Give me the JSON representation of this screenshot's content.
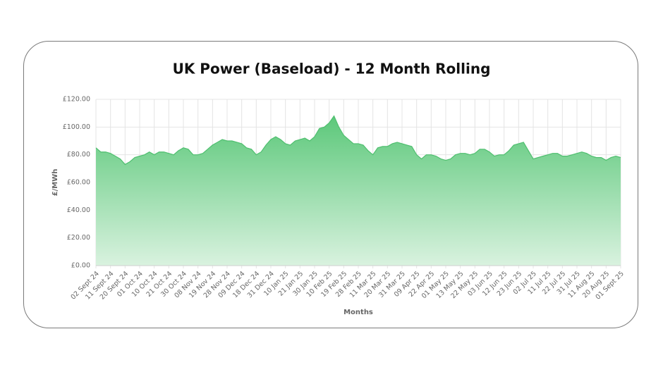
{
  "chart_data": {
    "type": "area",
    "title": "UK Power (Baseload) - 12 Month Rolling",
    "xlabel": "Months",
    "ylabel": "£/MWh",
    "color": "#4fbf6f",
    "grid": true,
    "ylim": [
      0,
      120
    ],
    "yticks": [
      {
        "value": 0,
        "label": "£0.00"
      },
      {
        "value": 20,
        "label": "£20.00"
      },
      {
        "value": 40,
        "label": "£40.00"
      },
      {
        "value": 60,
        "label": "£60.00"
      },
      {
        "value": 80,
        "label": "£80.00"
      },
      {
        "value": 100,
        "label": "£100.00"
      },
      {
        "value": 120,
        "label": "£120.00"
      }
    ],
    "categories": [
      "02 Sept 24",
      null,
      null,
      "11 Sept 24",
      null,
      null,
      "20 Sept 24",
      null,
      null,
      "01 Oct 24",
      null,
      null,
      "10 Oct 24",
      null,
      null,
      "21 Oct 24",
      null,
      null,
      "30 Oct 24",
      null,
      null,
      "08 Nov 24",
      null,
      null,
      "19 Nov 24",
      null,
      null,
      "28 Nov 24",
      null,
      null,
      "09 Dec 24",
      null,
      null,
      "18 Dec 24",
      null,
      null,
      "31 Dec 24",
      null,
      null,
      "10 Jan 25",
      null,
      null,
      "21 Jan 25",
      null,
      null,
      "30 Jan 25",
      null,
      null,
      "10 Feb 25",
      null,
      null,
      "19 Feb 25",
      null,
      null,
      "28 Feb 25",
      null,
      null,
      "11 Mar 25",
      null,
      null,
      "20 Mar 25",
      null,
      null,
      "31 Mar 25",
      null,
      null,
      "09 Apr 25",
      null,
      null,
      "22 Apr 25",
      null,
      null,
      "01 May 25",
      null,
      null,
      "13 May 25",
      null,
      null,
      "22 May 25",
      null,
      null,
      "03 Jun 25",
      null,
      null,
      "12 Jun 25",
      null,
      null,
      "23 Jun 25",
      null,
      null,
      "02 Jul 25",
      null,
      null,
      "11 Jul 25",
      null,
      null,
      "22 Jul 25",
      null,
      null,
      "31 Jul 25",
      null,
      null,
      "11 Aug 25",
      null,
      null,
      "20 Aug 25",
      null,
      null,
      "01 Sept 25"
    ],
    "values": [
      85,
      82,
      82,
      81,
      79,
      77,
      73,
      75,
      78,
      79,
      80,
      82,
      80,
      82,
      82,
      81,
      80,
      83,
      85,
      84,
      80,
      80,
      81,
      84,
      87,
      89,
      91,
      90,
      90,
      89,
      88,
      85,
      84,
      80,
      82,
      87,
      91,
      93,
      91,
      88,
      87,
      90,
      91,
      92,
      90,
      93,
      99,
      100,
      103,
      108,
      100,
      94,
      91,
      88,
      88,
      87,
      83,
      80,
      85,
      86,
      86,
      88,
      89,
      88,
      87,
      86,
      80,
      77,
      80,
      80,
      79,
      77,
      76,
      77,
      80,
      81,
      81,
      80,
      81,
      84,
      84,
      82,
      79,
      80,
      80,
      83,
      87,
      88,
      89,
      83,
      77,
      78,
      79,
      80,
      81,
      81,
      79,
      79,
      80,
      81,
      82,
      81,
      79,
      78,
      78,
      76,
      78,
      79,
      78
    ]
  }
}
